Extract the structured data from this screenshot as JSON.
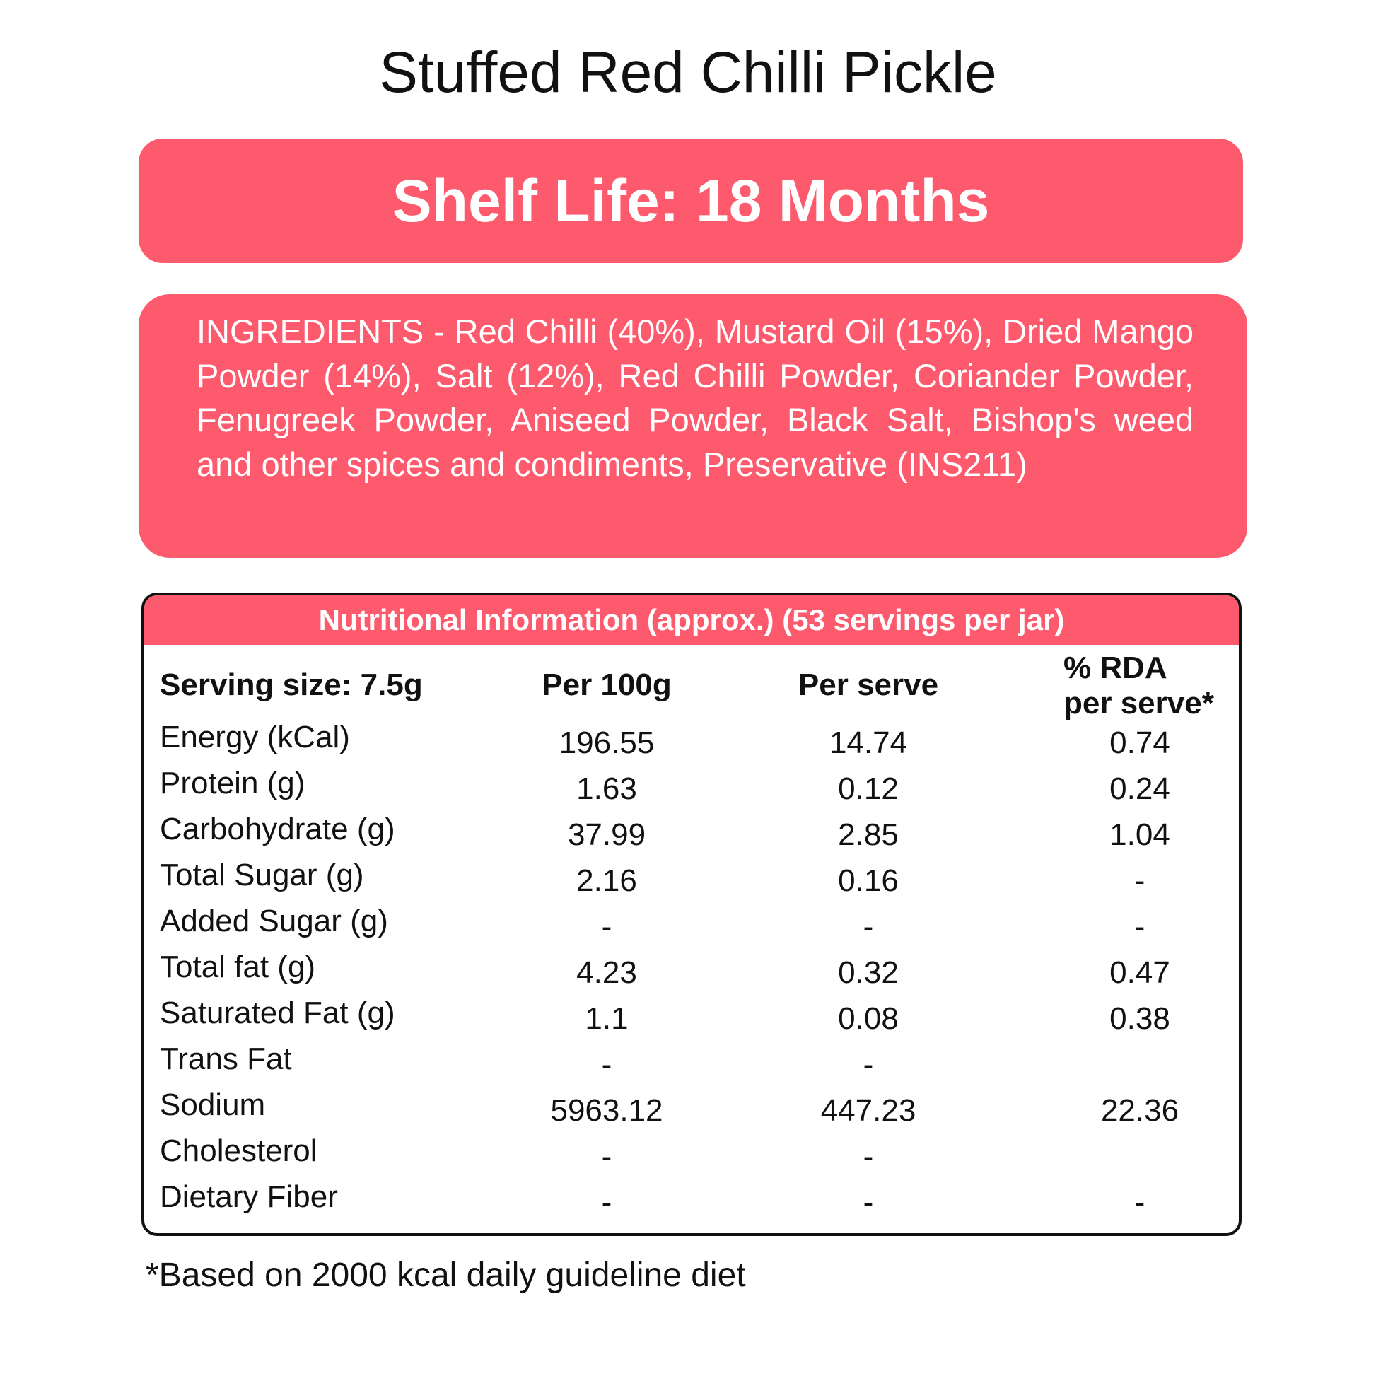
{
  "title": "Stuffed Red Chilli Pickle",
  "shelf_life": "Shelf Life: 18 Months",
  "ingredients": "INGREDIENTS - Red Chilli (40%), Mustard Oil (15%), Dried Mango Powder (14%), Salt (12%), Red Chilli Powder, Coriander Powder, Fenugreek Powder, Aniseed Powder, Black Salt, Bishop's weed and other spices and condiments, Preservative (INS211)",
  "accent_color": "#fe5a6e",
  "nutrition": {
    "header": "Nutritional Information (approx.) (53 servings per jar)",
    "columns": [
      "Serving size: 7.5g",
      "Per 100g",
      "Per serve",
      "% RDA",
      "per serve*"
    ],
    "rows": [
      {
        "label": "Energy (kCal)",
        "per100g": "196.55",
        "perserve": "14.74",
        "rda": "0.74"
      },
      {
        "label": "Protein (g)",
        "per100g": "1.63",
        "perserve": "0.12",
        "rda": "0.24"
      },
      {
        "label": "Carbohydrate (g)",
        "per100g": "37.99",
        "perserve": "2.85",
        "rda": "1.04"
      },
      {
        "label": "Total Sugar (g)",
        "per100g": "2.16",
        "perserve": "0.16",
        "rda": "-"
      },
      {
        "label": "Added Sugar (g)",
        "per100g": "-",
        "perserve": "-",
        "rda": "-"
      },
      {
        "label": "Total fat (g)",
        "per100g": "4.23",
        "perserve": "0.32",
        "rda": "0.47"
      },
      {
        "label": "Saturated Fat (g)",
        "per100g": "1.1",
        "perserve": "0.08",
        "rda": "0.38"
      },
      {
        "label": "Trans Fat",
        "per100g": "-",
        "perserve": "-",
        "rda": ""
      },
      {
        "label": "Sodium",
        "per100g": "5963.12",
        "perserve": "447.23",
        "rda": "22.36"
      },
      {
        "label": "Cholesterol",
        "per100g": "-",
        "perserve": "-",
        "rda": ""
      },
      {
        "label": "Dietary Fiber",
        "per100g": "-",
        "perserve": "-",
        "rda": "-"
      }
    ]
  },
  "footnote": "*Based on 2000 kcal daily guideline diet"
}
